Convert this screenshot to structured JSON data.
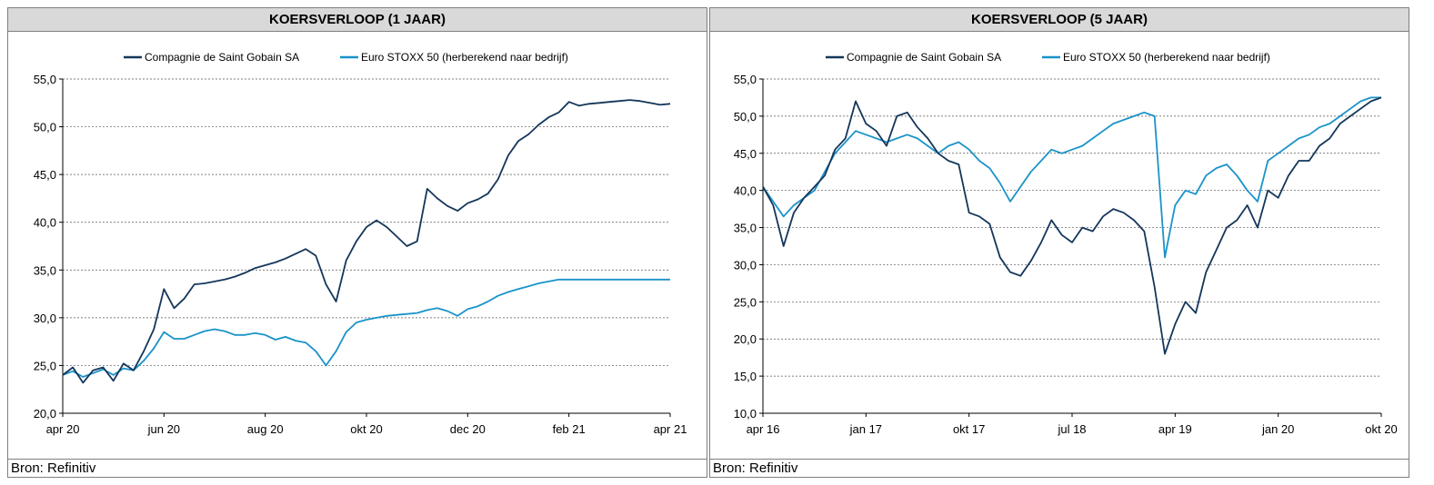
{
  "colors": {
    "saint_gobain": "#14365a",
    "stoxx": "#1a93c9",
    "grid": "#555555"
  },
  "footer_text": "Bron: Refinitiv",
  "chart_data": [
    {
      "type": "line",
      "title": "KOERSVERLOOP (1 JAAR)",
      "xlabel": "",
      "ylabel": "",
      "ylim": [
        20,
        55
      ],
      "y_ticks": [
        "20,0",
        "25,0",
        "30,0",
        "35,0",
        "40,0",
        "45,0",
        "50,0",
        "55,0"
      ],
      "x_ticks": [
        "apr 20",
        "jun 20",
        "aug 20",
        "okt 20",
        "dec 20",
        "feb 21",
        "apr 21"
      ],
      "grid": true,
      "legend": "top",
      "series": [
        {
          "name": "Compagnie de Saint Gobain SA",
          "x": [
            0,
            1,
            2,
            3,
            4,
            5,
            6,
            7,
            8,
            9,
            10,
            11,
            12,
            13,
            14,
            15,
            16,
            17,
            18,
            19,
            20,
            21,
            22,
            23,
            24,
            25,
            26,
            27,
            28,
            29,
            30,
            31,
            32,
            33,
            34,
            35,
            36,
            37,
            38,
            39,
            40,
            41,
            42,
            43,
            44,
            45,
            46,
            47,
            48,
            49,
            50,
            51,
            52,
            53,
            54,
            55,
            56,
            57,
            58,
            59,
            60
          ],
          "values": [
            24,
            24.8,
            23.2,
            24.5,
            24.8,
            23.4,
            25.2,
            24.5,
            26.5,
            28.8,
            33,
            31,
            32,
            33.5,
            33.6,
            33.8,
            34,
            34.3,
            34.7,
            35.2,
            35.5,
            35.8,
            36.2,
            36.7,
            37.2,
            36.5,
            33.5,
            31.7,
            36,
            38,
            39.5,
            40.2,
            39.5,
            38.5,
            37.5,
            38,
            43.5,
            42.5,
            41.7,
            41.2,
            42,
            42.4,
            43,
            44.5,
            47,
            48.5,
            49.2,
            50.2,
            51,
            51.5,
            52.6,
            52.2,
            52.4,
            52.5,
            52.6,
            52.7,
            52.8,
            52.7,
            52.5,
            52.3,
            52.4
          ]
        },
        {
          "name": "Euro STOXX 50 (herberekend naar bedrijf)",
          "x": [
            0,
            1,
            2,
            3,
            4,
            5,
            6,
            7,
            8,
            9,
            10,
            11,
            12,
            13,
            14,
            15,
            16,
            17,
            18,
            19,
            20,
            21,
            22,
            23,
            24,
            25,
            26,
            27,
            28,
            29,
            30,
            31,
            32,
            33,
            34,
            35,
            36,
            37,
            38,
            39,
            40,
            41,
            42,
            43,
            44,
            45,
            46,
            47,
            48,
            49,
            50,
            51,
            52,
            53,
            54,
            55,
            56,
            57,
            58,
            59,
            60
          ],
          "values": [
            24,
            24.4,
            23.8,
            24.2,
            24.6,
            24,
            24.7,
            24.5,
            25.5,
            26.8,
            28.5,
            27.8,
            27.8,
            28.2,
            28.6,
            28.8,
            28.6,
            28.2,
            28.2,
            28.4,
            28.2,
            27.7,
            28,
            27.6,
            27.4,
            26.5,
            25,
            26.5,
            28.5,
            29.5,
            29.8,
            30,
            30.2,
            30.3,
            30.4,
            30.5,
            30.8,
            31,
            30.7,
            30.2,
            30.9,
            31.2,
            31.7,
            32.3,
            32.7,
            33,
            33.3,
            33.6,
            33.8,
            34,
            34,
            34,
            34,
            34,
            34,
            34,
            34,
            34,
            34,
            34,
            34
          ]
        }
      ]
    },
    {
      "type": "line",
      "title": "KOERSVERLOOP (5 JAAR)",
      "xlabel": "",
      "ylabel": "",
      "ylim": [
        10,
        55
      ],
      "y_ticks": [
        "10,0",
        "15,0",
        "20,0",
        "25,0",
        "30,0",
        "35,0",
        "40,0",
        "45,0",
        "50,0",
        "55,0"
      ],
      "x_ticks": [
        "apr 16",
        "jan 17",
        "okt 17",
        "jul 18",
        "apr 19",
        "jan 20",
        "okt 20"
      ],
      "grid": true,
      "legend": "top",
      "series": [
        {
          "name": "Compagnie de Saint Gobain SA",
          "x": [
            0,
            1,
            2,
            3,
            4,
            5,
            6,
            7,
            8,
            9,
            10,
            11,
            12,
            13,
            14,
            15,
            16,
            17,
            18,
            19,
            20,
            21,
            22,
            23,
            24,
            25,
            26,
            27,
            28,
            29,
            30,
            31,
            32,
            33,
            34,
            35,
            36,
            37,
            38,
            39,
            40,
            41,
            42,
            43,
            44,
            45,
            46,
            47,
            48,
            49,
            50,
            51,
            52,
            53,
            54,
            55,
            56,
            57,
            58,
            59,
            60
          ],
          "values": [
            40.5,
            38,
            32.5,
            37,
            39,
            40.5,
            42,
            45.5,
            47,
            52,
            49,
            48,
            46,
            50,
            50.5,
            48.5,
            47,
            45,
            44,
            43.5,
            37,
            36.5,
            35.5,
            31,
            29,
            28.5,
            30.5,
            33,
            36,
            34,
            33,
            35,
            34.5,
            36.5,
            37.5,
            37,
            36,
            34.5,
            27,
            18,
            22,
            25,
            23.5,
            29,
            32,
            35,
            36,
            38,
            35,
            40,
            39,
            42,
            44,
            44,
            46,
            47,
            49,
            50,
            51,
            52,
            52.5
          ]
        },
        {
          "name": "Euro STOXX 50 (herberekend naar bedrijf)",
          "x": [
            0,
            1,
            2,
            3,
            4,
            5,
            6,
            7,
            8,
            9,
            10,
            11,
            12,
            13,
            14,
            15,
            16,
            17,
            18,
            19,
            20,
            21,
            22,
            23,
            24,
            25,
            26,
            27,
            28,
            29,
            30,
            31,
            32,
            33,
            34,
            35,
            36,
            37,
            38,
            39,
            40,
            41,
            42,
            43,
            44,
            45,
            46,
            47,
            48,
            49,
            50,
            51,
            52,
            53,
            54,
            55,
            56,
            57,
            58,
            59,
            60
          ],
          "values": [
            40.5,
            38.5,
            36.5,
            38,
            39,
            40,
            42.5,
            45,
            46.5,
            48,
            47.5,
            47,
            46.5,
            47,
            47.5,
            47,
            46,
            45,
            46,
            46.5,
            45.5,
            44,
            43,
            41,
            38.5,
            40.5,
            42.5,
            44,
            45.5,
            45,
            45.5,
            46,
            47,
            48,
            49,
            49.5,
            50,
            50.5,
            50,
            31,
            38,
            40,
            39.5,
            42,
            43,
            43.5,
            42,
            40,
            38.5,
            44,
            45,
            46,
            47,
            47.5,
            48.5,
            49,
            50,
            51,
            52,
            52.5,
            52.5
          ]
        }
      ]
    }
  ]
}
